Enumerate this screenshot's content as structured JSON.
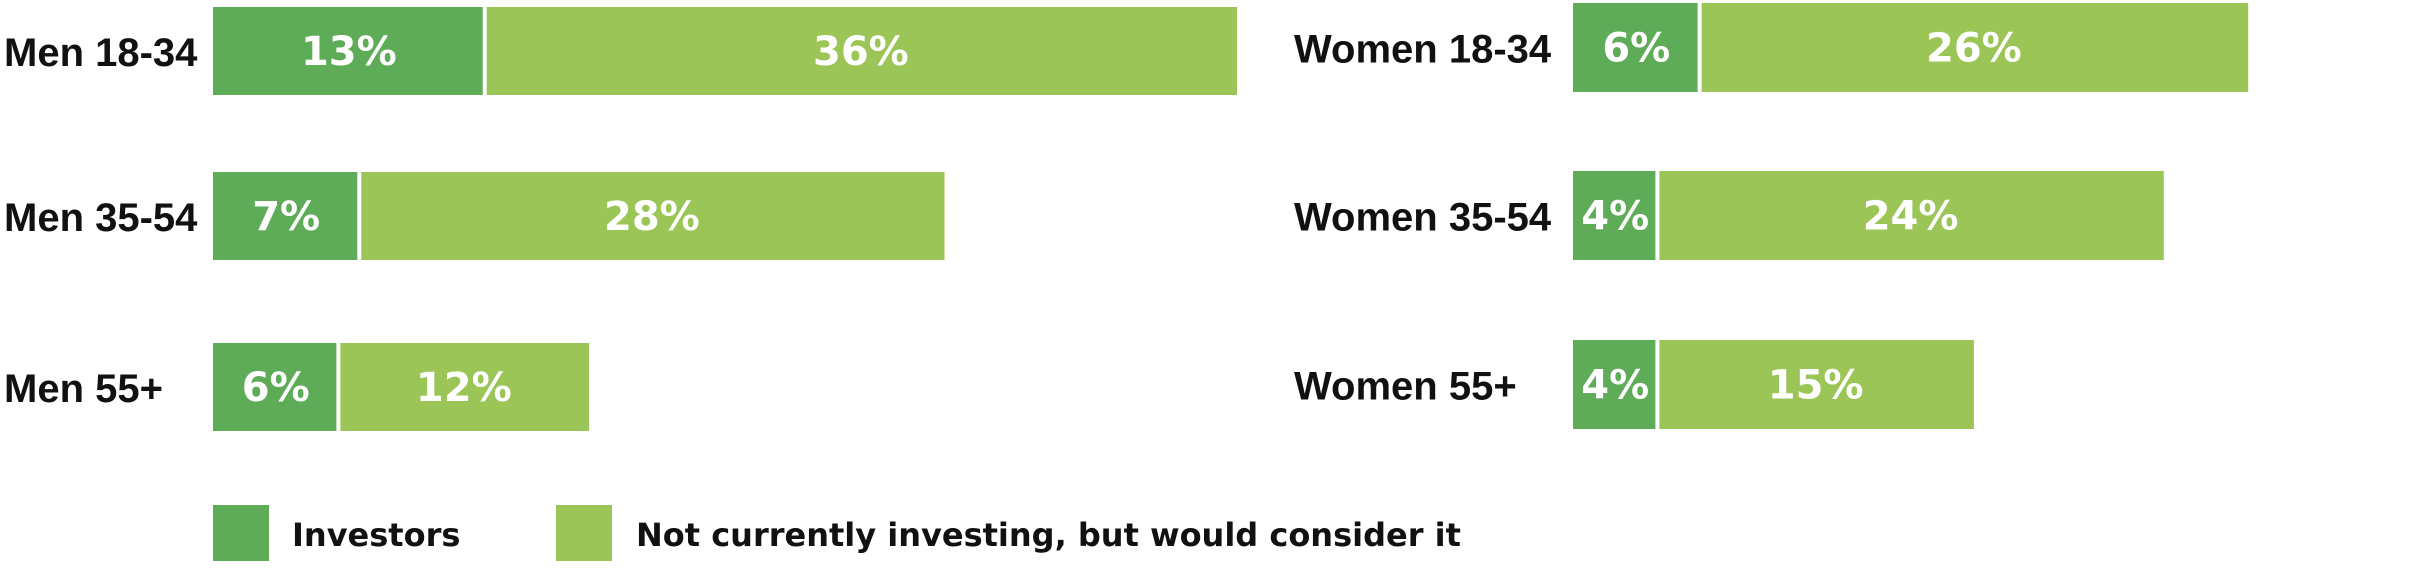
{
  "colors": {
    "investors": "#5eac57",
    "considering": "#9bc556",
    "divider": "#ffffff"
  },
  "chart_data": [
    {
      "type": "bar",
      "orientation": "horizontal",
      "stacked": true,
      "categories": [
        "Men 18-34",
        "Men 35-54",
        "Men 55+"
      ],
      "series": [
        {
          "name": "Investors",
          "values": [
            13,
            7,
            6
          ]
        },
        {
          "name": "Not currently investing, but would consider it",
          "values": [
            36,
            28,
            12
          ]
        }
      ],
      "value_labels": [
        [
          "13%",
          "7%",
          "6%"
        ],
        [
          "36%",
          "28%",
          "12%"
        ]
      ]
    },
    {
      "type": "bar",
      "orientation": "horizontal",
      "stacked": true,
      "categories": [
        "Women 18-34",
        "Women 35-54",
        "Women 55+"
      ],
      "series": [
        {
          "name": "Investors",
          "values": [
            6,
            4,
            4
          ]
        },
        {
          "name": "Not currently investing, but would consider it",
          "values": [
            26,
            24,
            15
          ]
        }
      ],
      "value_labels": [
        [
          "6%",
          "4%",
          "4%"
        ],
        [
          "26%",
          "24%",
          "15%"
        ]
      ]
    }
  ],
  "legend": {
    "placement": "bottom-left",
    "items": [
      "Investors",
      "Not currently investing, but would consider it"
    ]
  }
}
